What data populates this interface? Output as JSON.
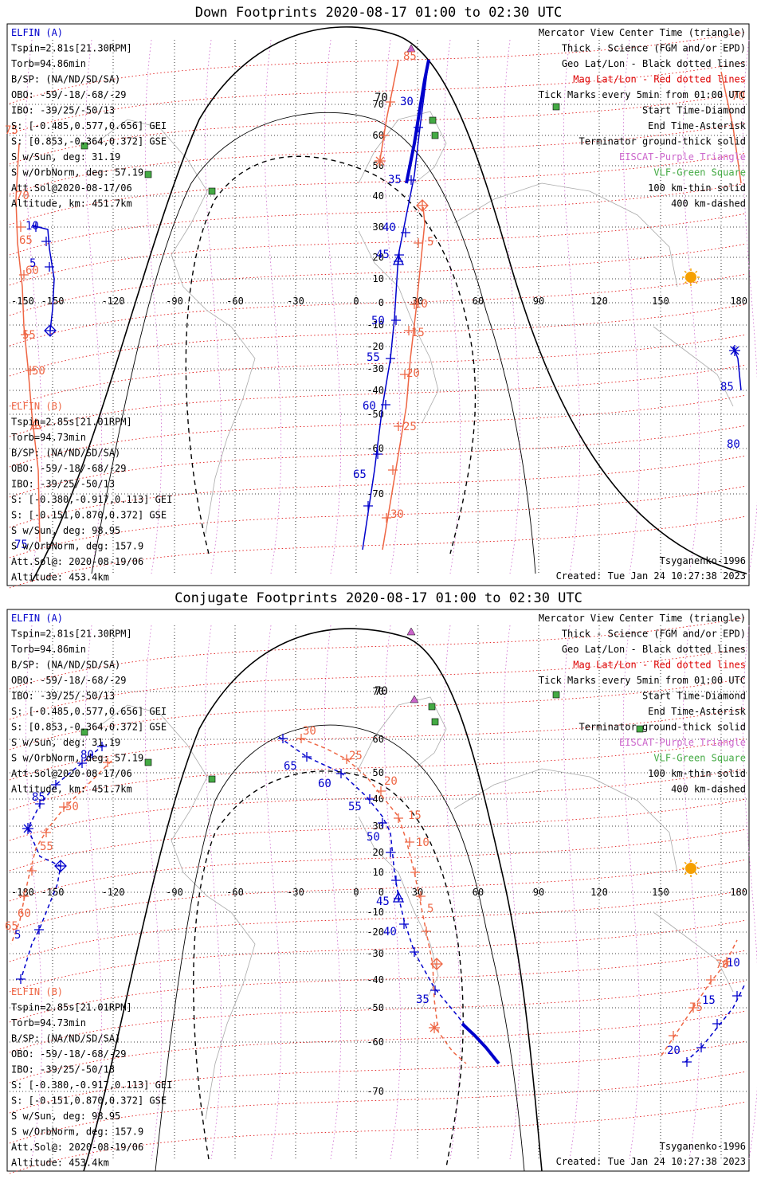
{
  "panels": [
    {
      "id": "down",
      "title": "Down Footprints 2020-08-17 01:00 to 02:30 UTC",
      "info_a": [
        "ELFIN (A)",
        "Tspin=2.81s[21.30RPM]",
        "Torb=94.86min",
        "B/SP: (NA/ND/SD/SA)",
        "OBO: -59/-18/-68/-29",
        "IBO: -39/25/-50/13",
        "S: [-0.485,0.577,0.656] GEI",
        "S: [0.853,-0.364,0.372] GSE",
        "S w/Sun, deg: 31.19",
        "S w/OrbNorm, deg: 57.19",
        "Att.Sol@2020-08-17/06",
        "Altitude, km: 451.7km"
      ],
      "info_b": [
        "ELFIN (B)",
        "Tspin=2.85s[21.01RPM]",
        "Torb=94.73min",
        "B/SP: (NA/ND/SD/SA)",
        "OBO: -59/-18/-68/-29",
        "IBO: -39/25/-50/13",
        "S: [-0.380,-0.917,0.113] GEI",
        "S: [-0.151,0.870,0.372] GSE",
        "S w/Sun, deg: 98.95",
        "S w/OrbNorm, deg: 157.9",
        "Att.Sol@: 2020-08-19/06",
        "Altitude: 453.4km"
      ],
      "legend": [
        "Mercator View Center Time (triangle)",
        "Thick - Science (FGM and/or EPD)",
        "Geo Lat/Lon - Black dotted lines",
        "Mag Lat/Lon - Red dotted lines",
        "Tick Marks every 5min from 01:00 UTC",
        "Start Time-Diamond",
        "End Time-Asterisk",
        "Terminator ground-thick solid",
        "EISCAT-Purple Triangle",
        "VLF-Green Square",
        "100 km-thin solid",
        "400 km-dashed"
      ],
      "footer_right": "Tsyganenko-1996",
      "created": "Created: Tue Jan 24 10:27:38 2023",
      "track_a_labels": [
        "10",
        "5",
        "50",
        "55",
        "60",
        "65",
        "30",
        "35",
        "40",
        "45"
      ],
      "track_a_labels_east": [
        "85",
        "80"
      ],
      "track_b_labels": [
        "85",
        "60",
        "55",
        "50",
        "45",
        "5",
        "10",
        "15",
        "20",
        "25",
        "30"
      ],
      "track_b_labels_west": [
        "75",
        "70",
        "65",
        "60",
        "55",
        "50"
      ],
      "track_b_labels_misc": [
        "70"
      ]
    },
    {
      "id": "conjugate",
      "title": "Conjugate Footprints 2020-08-17 01:00 to 02:30 UTC",
      "info_a": [
        "ELFIN (A)",
        "Tspin=2.81s[21.30RPM]",
        "Torb=94.86min",
        "B/SP: (NA/ND/SD/SA)",
        "OBO: -59/-18/-68/-29",
        "IBO: -39/25/-50/13",
        "S: [-0.485,0.577,0.656] GEI",
        "S: [0.853,-0.364,0.372] GSE",
        "S w/Sun, deg: 31.19",
        "S w/OrbNorm, deg: 57.19",
        "Att.Sol@2020-08-17/06",
        "Altitude, km: 451.7km"
      ],
      "info_b": [
        "ELFIN (B)",
        "Tspin=2.85s[21.01RPM]",
        "Torb=94.73min",
        "B/SP: (NA/ND/SD/SA)",
        "OBO: -59/-18/-68/-29",
        "IBO: -39/25/-50/13",
        "S: [-0.380,-0.917,0.113] GEI",
        "S: [-0.151,0.870,0.372] GSE",
        "S w/Sun, deg: 98.95",
        "S w/OrbNorm, deg: 157.9",
        "Att.Sol@: 2020-08-19/06",
        "Altitude: 453.4km"
      ],
      "legend": [
        "Mercator View Center Time (triangle)",
        "Thick - Science (FGM and/or EPD)",
        "Geo Lat/Lon - Black dotted lines",
        "Mag Lat/Lon - Red dotted lines",
        "Tick Marks every 5min from 01:00 UTC",
        "Start Time-Diamond",
        "End Time-Asterisk",
        "Terminator ground-thick solid",
        "EISCAT-Purple Triangle",
        "VLF-Green Square",
        "100 km-thin solid",
        "400 km-dashed"
      ],
      "footer_right": "Tsyganenko-1996",
      "created": "Created: Tue Jan 24 10:27:38 2023",
      "track_a_labels": [
        "80",
        "85",
        "65",
        "60",
        "55",
        "50",
        "45",
        "40",
        "35",
        "5",
        "10",
        "15",
        "20"
      ],
      "track_b_labels": [
        "30",
        "25",
        "20",
        "15",
        "10",
        "5",
        "50",
        "55",
        "60",
        "65",
        "70",
        "75"
      ]
    }
  ],
  "axes": {
    "lon_ticks": [
      "-150",
      "-120",
      "-90",
      "-60",
      "-30",
      "0",
      "30",
      "60",
      "90",
      "120",
      "150"
    ],
    "lon_edge_left_top": "-150",
    "lon_edge_left_bottom": "-180",
    "lon_edge_right": "180",
    "lat_ticks_down": [
      "70",
      "60",
      "50",
      "40",
      "30",
      "20",
      "10",
      "0",
      "-10",
      "-20",
      "-30",
      "-40",
      "-50",
      "-60",
      "-70"
    ],
    "lat_ticks_conj": [
      "70",
      "60",
      "50",
      "40",
      "30",
      "20",
      "10",
      "0",
      "-10",
      "-20",
      "-30",
      "-40",
      "-50",
      "-60",
      "-70"
    ]
  },
  "colors": {
    "elfin_a": "#0000cc",
    "elfin_b": "#ee6644",
    "mag_grid": "#dd0000",
    "eiscat": "#cc66cc",
    "vlf": "#44aa44",
    "sun": "#f5a000",
    "coast": "#aaaaaa"
  },
  "icons": [
    "sun-icon",
    "eiscat-triangle-icon",
    "vlf-square-icon",
    "start-diamond-icon",
    "end-asterisk-icon",
    "view-center-triangle-icon"
  ]
}
